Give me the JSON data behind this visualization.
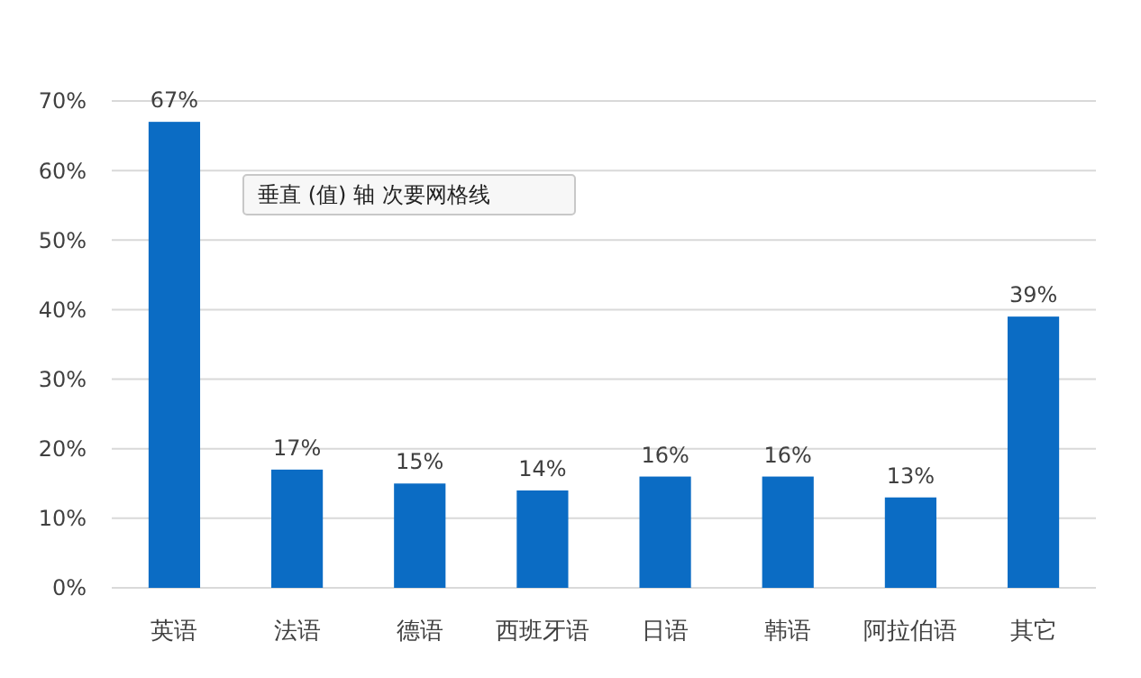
{
  "chart_data": {
    "type": "bar",
    "categories": [
      "英语",
      "法语",
      "德语",
      "西班牙语",
      "日语",
      "韩语",
      "阿拉伯语",
      "其它"
    ],
    "values": [
      67,
      17,
      15,
      14,
      16,
      16,
      13,
      39
    ],
    "value_labels": [
      "67%",
      "17%",
      "15%",
      "14%",
      "16%",
      "16%",
      "13%",
      "39%"
    ],
    "color": "#0b6cc4",
    "ylim": [
      0,
      70
    ],
    "yticks": [
      {
        "value": 0,
        "label": "0%"
      },
      {
        "value": 10,
        "label": "10%"
      },
      {
        "value": 20,
        "label": "20%"
      },
      {
        "value": 30,
        "label": "30%"
      },
      {
        "value": 40,
        "label": "40%"
      },
      {
        "value": 50,
        "label": "50%"
      },
      {
        "value": 60,
        "label": "60%"
      },
      {
        "value": 70,
        "label": "70%"
      }
    ],
    "grid": true,
    "annotations": [
      "垂直 (值) 轴 次要网格线"
    ]
  }
}
